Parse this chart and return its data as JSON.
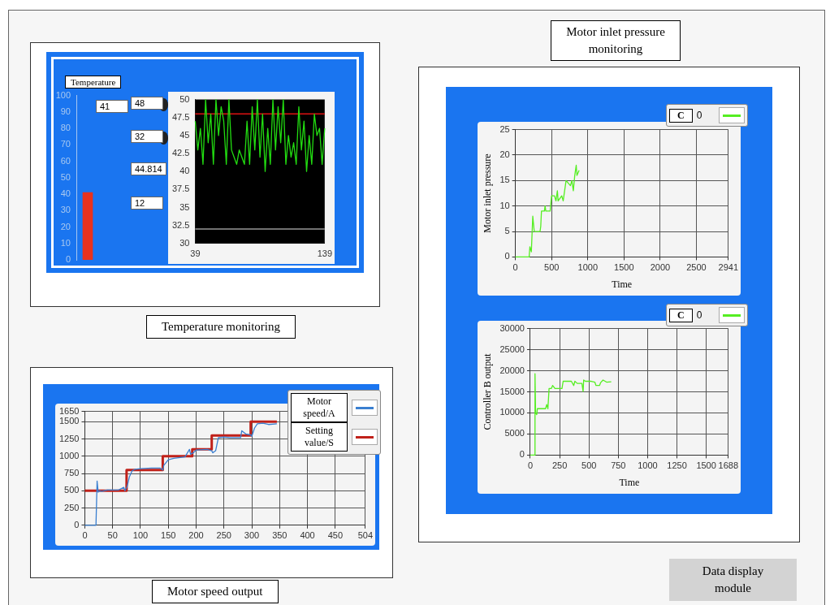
{
  "chart_data": [
    {
      "type": "bar",
      "title": "Temperature",
      "categories": [
        null
      ],
      "values": [
        41
      ],
      "color": "#e8321e",
      "ylim": [
        0,
        100
      ],
      "yticks": [
        0,
        10,
        20,
        30,
        40,
        50,
        60,
        70,
        80,
        90,
        100
      ],
      "grid": false
    },
    {
      "type": "other",
      "annotations": [
        "41",
        "48",
        "32",
        "44.814",
        "12"
      ]
    },
    {
      "type": "line",
      "title": "Temperature monitoring",
      "series": [
        {
          "color": "#22dd11",
          "x": [
            39,
            41,
            43,
            45,
            47,
            49,
            51,
            53,
            55,
            57,
            59,
            61,
            63,
            65,
            67,
            69,
            71,
            73,
            75,
            77,
            79,
            81,
            83,
            85,
            87,
            89,
            91,
            93,
            95,
            97,
            99,
            101,
            103,
            105,
            107,
            109,
            111,
            113,
            115,
            117,
            119,
            121,
            123,
            125,
            127,
            129,
            131,
            133,
            135,
            137,
            139
          ],
          "values": [
            47,
            43,
            46,
            41,
            50,
            44,
            48,
            41,
            50,
            45,
            49,
            47,
            41,
            50,
            43,
            42,
            41,
            43,
            42,
            41,
            47,
            41,
            49,
            43,
            50,
            42,
            48,
            40,
            46,
            41,
            50,
            43,
            49,
            44,
            50,
            41,
            45,
            42,
            44,
            41,
            49,
            43,
            47,
            40,
            45,
            41,
            48,
            45,
            46,
            41,
            46
          ]
        }
      ],
      "ref_lines": [
        {
          "axis": "y",
          "value": 48,
          "color": "#dd1111"
        },
        {
          "axis": "y",
          "value": 32,
          "color": "#999999"
        }
      ],
      "xlim": [
        39,
        139
      ],
      "xticks": [
        39,
        139
      ],
      "ylim": [
        30,
        50
      ],
      "yticks": [
        30,
        32.5,
        35,
        37.5,
        40,
        42.5,
        45,
        47.5,
        50
      ],
      "grid": false
    },
    {
      "type": "line",
      "title": "Motor speed output",
      "legend": "top right",
      "series": [
        {
          "name": "Motor speed/A",
          "color": "#3a7fd0",
          "x": [
            0,
            20,
            22,
            24,
            27,
            30,
            40,
            60,
            70,
            72,
            76,
            80,
            85,
            90,
            100,
            120,
            135,
            140,
            142,
            150,
            160,
            180,
            188,
            190,
            195,
            200,
            220,
            228,
            230,
            235,
            240,
            250,
            260,
            280,
            282,
            290,
            298,
            300,
            305,
            310,
            320,
            330,
            345
          ],
          "values": [
            0,
            0,
            640,
            480,
            500,
            490,
            510,
            510,
            550,
            500,
            560,
            700,
            790,
            810,
            820,
            830,
            830,
            800,
            870,
            950,
            970,
            990,
            1100,
            1030,
            1050,
            1090,
            1100,
            1080,
            1050,
            1080,
            1270,
            1280,
            1270,
            1270,
            1370,
            1320,
            1310,
            1290,
            1410,
            1470,
            1480,
            1460,
            1470
          ]
        },
        {
          "name": "Setting value/S",
          "color": "#c0211a",
          "x": [
            0,
            75,
            75,
            140,
            140,
            193,
            193,
            228,
            228,
            298,
            298,
            345
          ],
          "values": [
            500,
            500,
            800,
            800,
            1000,
            1000,
            1100,
            1100,
            1300,
            1300,
            1500,
            1500
          ]
        }
      ],
      "xlim": [
        0,
        504
      ],
      "xticks": [
        0,
        50,
        100,
        150,
        200,
        250,
        300,
        350,
        400,
        450,
        504
      ],
      "ylim": [
        0,
        1650
      ],
      "yticks": [
        0,
        250,
        500,
        750,
        1000,
        1250,
        1500,
        1650
      ],
      "grid": true
    },
    {
      "type": "line",
      "title": "Motor inlet pressure monitoring",
      "xlabel": "Time",
      "ylabel": "Motor inlet pressure",
      "legend": "top right",
      "legend_title": "C",
      "series": [
        {
          "name": "0",
          "color": "#55ee22",
          "x": [
            0,
            190,
            200,
            220,
            240,
            260,
            340,
            350,
            360,
            400,
            410,
            420,
            480,
            500,
            540,
            560,
            580,
            590,
            640,
            660,
            680,
            700,
            760,
            780,
            800,
            820,
            840,
            850,
            880
          ],
          "values": [
            0,
            0,
            2,
            1,
            8,
            5,
            5,
            6,
            9,
            9,
            10,
            9,
            9,
            12,
            12,
            11,
            13,
            11,
            12,
            11,
            13,
            15,
            14,
            15,
            13,
            16,
            18,
            16,
            17
          ]
        }
      ],
      "xlim": [
        0,
        2941
      ],
      "xticks": [
        0,
        500,
        1000,
        1500,
        2000,
        2500,
        2941
      ],
      "ylim": [
        0,
        25
      ],
      "yticks": [
        0,
        5,
        10,
        15,
        20,
        25
      ],
      "grid": true
    },
    {
      "type": "line",
      "title": "Data display module",
      "xlabel": "Time",
      "ylabel": "Controller B output",
      "legend": "top right",
      "legend_title": "C",
      "series": [
        {
          "name": "0",
          "color": "#55ee22",
          "x": [
            0,
            38,
            40,
            45,
            55,
            60,
            130,
            140,
            150,
            160,
            180,
            190,
            210,
            270,
            280,
            350,
            370,
            380,
            400,
            440,
            450,
            455,
            470,
            520,
            550,
            560,
            590,
            600,
            620,
            650,
            690
          ],
          "values": [
            0,
            0,
            19300,
            10000,
            9600,
            11000,
            11000,
            12000,
            11000,
            15800,
            15800,
            16500,
            15800,
            15800,
            17500,
            17500,
            16500,
            17500,
            17000,
            17000,
            15100,
            17800,
            17500,
            17500,
            17300,
            16500,
            16500,
            17200,
            17800,
            17300,
            17400
          ]
        }
      ],
      "xlim": [
        0,
        1688
      ],
      "xticks": [
        0,
        250,
        500,
        750,
        1000,
        1250,
        1500,
        1688
      ],
      "ylim": [
        0,
        30000
      ],
      "yticks": [
        0,
        5000,
        10000,
        15000,
        20000,
        25000,
        30000
      ],
      "grid": true
    }
  ]
}
